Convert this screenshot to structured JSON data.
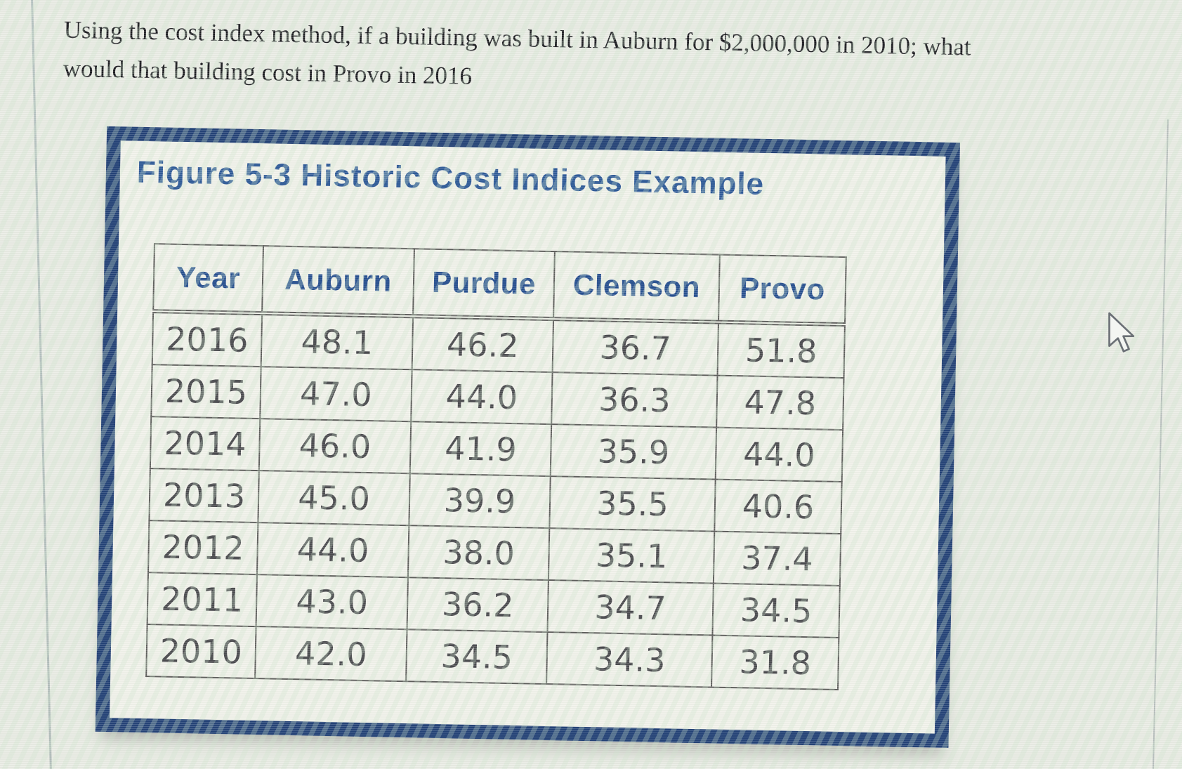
{
  "question": {
    "line1": "Using the cost index method, if a building was built in Auburn for $2,000,000 in 2010; what",
    "line2": "would that building cost in Provo in 2016"
  },
  "chart_data": {
    "type": "table",
    "title": "Figure 5-3 Historic Cost Indices Example",
    "columns": [
      "Year",
      "Auburn",
      "Purdue",
      "Clemson",
      "Provo"
    ],
    "rows": [
      [
        "2016",
        "48.1",
        "46.2",
        "36.7",
        "51.8"
      ],
      [
        "2015",
        "47.0",
        "44.0",
        "36.3",
        "47.8"
      ],
      [
        "2014",
        "46.0",
        "41.9",
        "35.9",
        "44.0"
      ],
      [
        "2013",
        "45.0",
        "39.9",
        "35.5",
        "40.6"
      ],
      [
        "2012",
        "44.0",
        "38.0",
        "35.1",
        "37.4"
      ],
      [
        "2011",
        "43.0",
        "36.2",
        "34.7",
        "34.5"
      ],
      [
        "2010",
        "42.0",
        "34.5",
        "34.3",
        "31.8"
      ]
    ]
  },
  "cursor": {
    "icon": "arrow-cursor"
  },
  "colors": {
    "frame_navy": "#1f3e74",
    "title_blue": "#2b5796",
    "header_blue": "#224c8d",
    "data_text": "#47474b",
    "grid_line": "#5a5a58",
    "page_background": "#e9ece4",
    "figure_background": "#f1f2ea"
  }
}
